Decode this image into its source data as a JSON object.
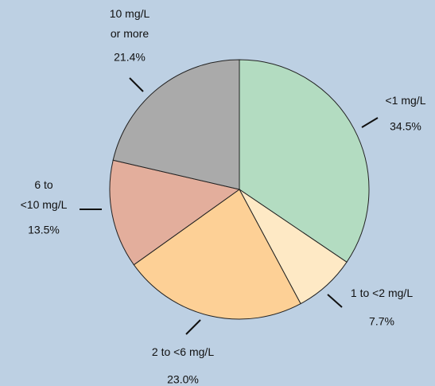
{
  "chart_data": {
    "type": "pie",
    "categories": [
      "<1 mg/L",
      "1 to <2 mg/L",
      "2 to <6 mg/L",
      "6 to\n<10 mg/L",
      "10 mg/L\nor more"
    ],
    "values": [
      34.5,
      7.7,
      23.0,
      13.5,
      21.4
    ],
    "value_labels": [
      "34.5%",
      "7.7%",
      "23.0%",
      "13.5%",
      "21.4%"
    ],
    "colors": [
      "#b3dcc1",
      "#fee9c5",
      "#fdd096",
      "#e3ae9c",
      "#aaaaaa"
    ]
  }
}
